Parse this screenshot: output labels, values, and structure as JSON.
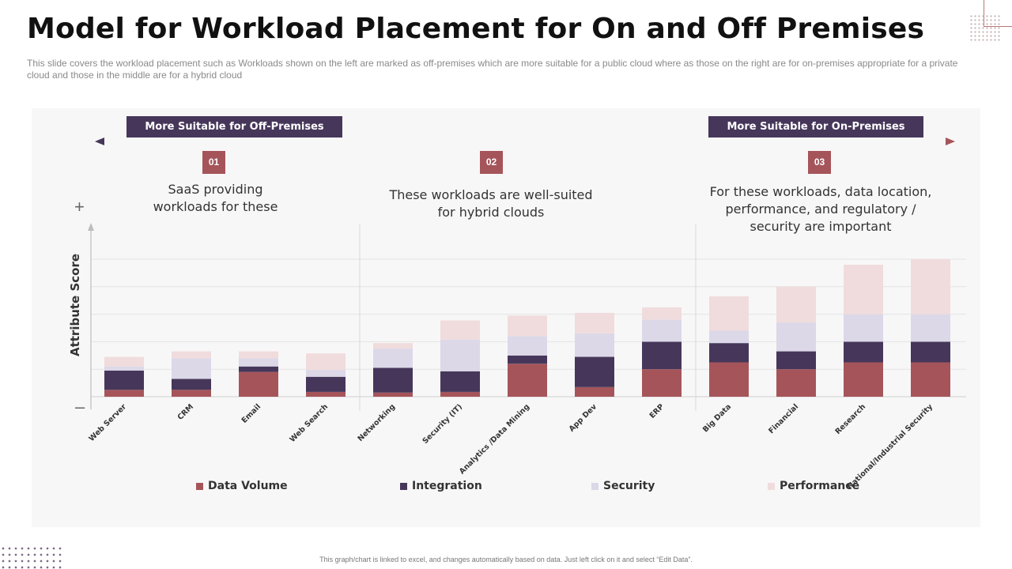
{
  "title": "Model for Workload Placement for On and Off Premises",
  "subtitle": "This slide covers the workload placement such as Workloads shown on the left are marked as off-premises which are more suitable for a public cloud where as those on the right are for on-premises appropriate for a private cloud and those in the middle are for a hybrid cloud",
  "banners": {
    "left": "More Suitable for Off-Premises",
    "right": "More Suitable for On-Premises"
  },
  "sections": [
    {
      "number": "01",
      "text": "SaaS providing workloads for these"
    },
    {
      "number": "02",
      "text": "These workloads are well-suited for hybrid clouds"
    },
    {
      "number": "03",
      "text": "For these workloads, data location, performance, and regulatory / security are important"
    }
  ],
  "axis_marks": {
    "plus": "+",
    "minus": "–"
  },
  "footer": "This graph/chart is linked to excel, and changes automatically based on data.  Just left click on it and select “Edit Data”.",
  "colors": {
    "data_volume": "#a5555a",
    "integration": "#46375a",
    "security": "#dcd8e8",
    "performance": "#f0dcdd",
    "banner": "#46375a",
    "number_box": "#a5555a"
  },
  "chart_data": {
    "type": "bar",
    "stacked": true,
    "title": "",
    "xlabel": "",
    "ylabel": "Attribute Score",
    "ylim": [
      0,
      10
    ],
    "grid": true,
    "legend": "bottom",
    "categories": [
      "Web Server",
      "CRM",
      "Email",
      "Web Search",
      "Networking",
      "Security (IT)",
      "Analytics /Data Mining",
      "App Dev",
      "ERP",
      "Big Data",
      "Financial",
      "Research",
      "National/Industrial Security"
    ],
    "series": [
      {
        "name": "Data Volume",
        "values": [
          0.5,
          0.5,
          1.8,
          0.35,
          0.3,
          0.35,
          2.4,
          0.7,
          2.0,
          2.5,
          2.0,
          2.5,
          2.5
        ]
      },
      {
        "name": "Integration",
        "values": [
          1.4,
          0.8,
          0.4,
          1.1,
          1.8,
          1.5,
          0.6,
          2.2,
          2.0,
          1.4,
          1.3,
          1.5,
          1.5
        ]
      },
      {
        "name": "Security",
        "values": [
          0.3,
          1.5,
          0.6,
          0.5,
          1.4,
          2.3,
          1.4,
          1.7,
          1.6,
          0.9,
          2.1,
          2.0,
          2.0
        ]
      },
      {
        "name": "Performance",
        "values": [
          0.7,
          0.5,
          0.5,
          1.2,
          0.4,
          1.4,
          1.5,
          1.5,
          0.9,
          2.5,
          2.6,
          3.6,
          4.0
        ]
      }
    ]
  }
}
